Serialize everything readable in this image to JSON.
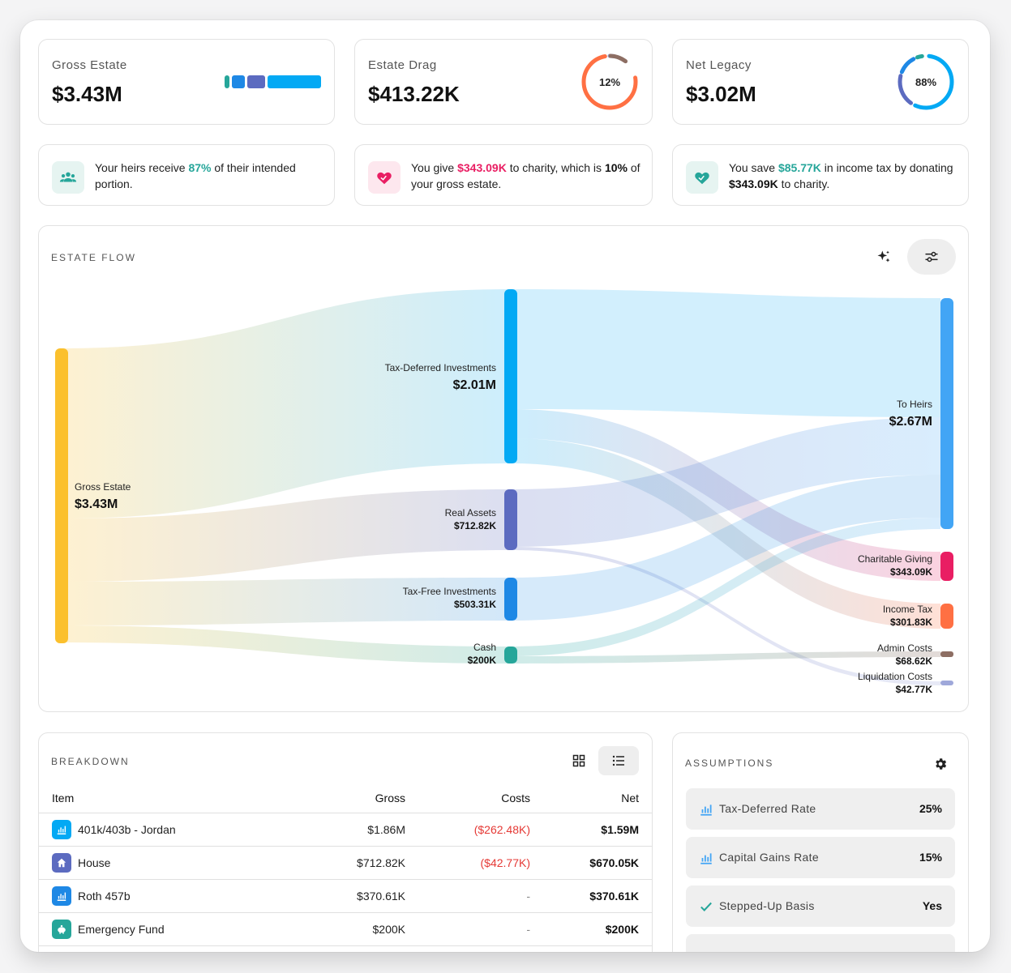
{
  "stats": {
    "gross_estate": {
      "label": "Gross Estate",
      "value": "$3.43M",
      "bar_colors": [
        "#26a69a",
        "#1e88e5",
        "#5c6bc0",
        "#03a9f4"
      ]
    },
    "estate_drag": {
      "label": "Estate Drag",
      "value": "$413.22K",
      "percent_text": "12%",
      "percent": 12
    },
    "net_legacy": {
      "label": "Net Legacy",
      "value": "$3.02M",
      "percent_text": "88%",
      "percent": 88
    }
  },
  "insights": {
    "heirs": {
      "icon": "people-icon",
      "before": "Your heirs receive ",
      "highlight": "87%",
      "after": " of their intended portion."
    },
    "charity": {
      "icon": "heart-hand-icon",
      "before": "You give ",
      "highlight": "$343.09K",
      "middle": " to charity, which is ",
      "bold": "10%",
      "after": " of your gross estate."
    },
    "tax": {
      "icon": "heart-hand-icon",
      "before": "You save ",
      "highlight": "$85.77K",
      "middle": " in income tax by donating ",
      "bold": "$343.09K",
      "after": " to charity."
    }
  },
  "estate_flow": {
    "title": "ESTATE FLOW",
    "buttons": [
      "sparkle-icon",
      "sliders-icon"
    ]
  },
  "chart_data": {
    "type": "sankey",
    "nodes": [
      {
        "id": "gross",
        "name": "Gross Estate",
        "value": "$3.43M",
        "color": "#fbc02d"
      },
      {
        "id": "taxdef",
        "name": "Tax-Deferred Investments",
        "value": "$2.01M",
        "color": "#03a9f4"
      },
      {
        "id": "real",
        "name": "Real Assets",
        "value": "$712.82K",
        "color": "#5c6bc0"
      },
      {
        "id": "taxfree",
        "name": "Tax-Free Investments",
        "value": "$503.31K",
        "color": "#1e88e5"
      },
      {
        "id": "cash",
        "name": "Cash",
        "value": "$200K",
        "color": "#26a69a"
      },
      {
        "id": "heirs",
        "name": "To Heirs",
        "value": "$2.67M",
        "color": "#42a5f5"
      },
      {
        "id": "charity",
        "name": "Charitable Giving",
        "value": "$343.09K",
        "color": "#e91e63"
      },
      {
        "id": "income",
        "name": "Income Tax",
        "value": "$301.83K",
        "color": "#ff7043"
      },
      {
        "id": "admin",
        "name": "Admin Costs",
        "value": "$68.62K",
        "color": "#8d6e63"
      },
      {
        "id": "liq",
        "name": "Liquidation Costs",
        "value": "$42.77K",
        "color": "#9fa8da"
      }
    ],
    "links": [
      {
        "source": "gross",
        "target": "taxdef"
      },
      {
        "source": "gross",
        "target": "real"
      },
      {
        "source": "gross",
        "target": "taxfree"
      },
      {
        "source": "gross",
        "target": "cash"
      },
      {
        "source": "taxdef",
        "target": "heirs"
      },
      {
        "source": "taxdef",
        "target": "charity"
      },
      {
        "source": "taxdef",
        "target": "income"
      },
      {
        "source": "real",
        "target": "heirs"
      },
      {
        "source": "real",
        "target": "liq"
      },
      {
        "source": "taxfree",
        "target": "heirs"
      },
      {
        "source": "cash",
        "target": "heirs"
      },
      {
        "source": "cash",
        "target": "admin"
      }
    ]
  },
  "breakdown": {
    "title": "BREAKDOWN",
    "columns": [
      "Item",
      "Gross",
      "Costs",
      "Net"
    ],
    "rows": [
      {
        "icon": "chart-icon",
        "icon_color": "#03a9f4",
        "item": "401k/403b - Jordan",
        "gross": "$1.86M",
        "costs": "($262.48K)",
        "net": "$1.59M"
      },
      {
        "icon": "home-icon",
        "icon_color": "#5c6bc0",
        "item": "House",
        "gross": "$712.82K",
        "costs": "($42.77K)",
        "net": "$670.05K"
      },
      {
        "icon": "chart-icon",
        "icon_color": "#1e88e5",
        "item": "Roth 457b",
        "gross": "$370.61K",
        "costs": "-",
        "net": "$370.61K"
      },
      {
        "icon": "piggy-bank-icon",
        "icon_color": "#26a69a",
        "item": "Emergency Fund",
        "gross": "$200K",
        "costs": "-",
        "net": "$200K"
      }
    ]
  },
  "assumptions": {
    "title": "ASSUMPTIONS",
    "items": [
      {
        "icon": "chart-icon",
        "label": "Tax-Deferred Rate",
        "value": "25%"
      },
      {
        "icon": "chart-icon",
        "label": "Capital Gains Rate",
        "value": "15%"
      },
      {
        "icon": "check-icon",
        "label": "Stepped-Up Basis",
        "value": "Yes"
      }
    ]
  }
}
